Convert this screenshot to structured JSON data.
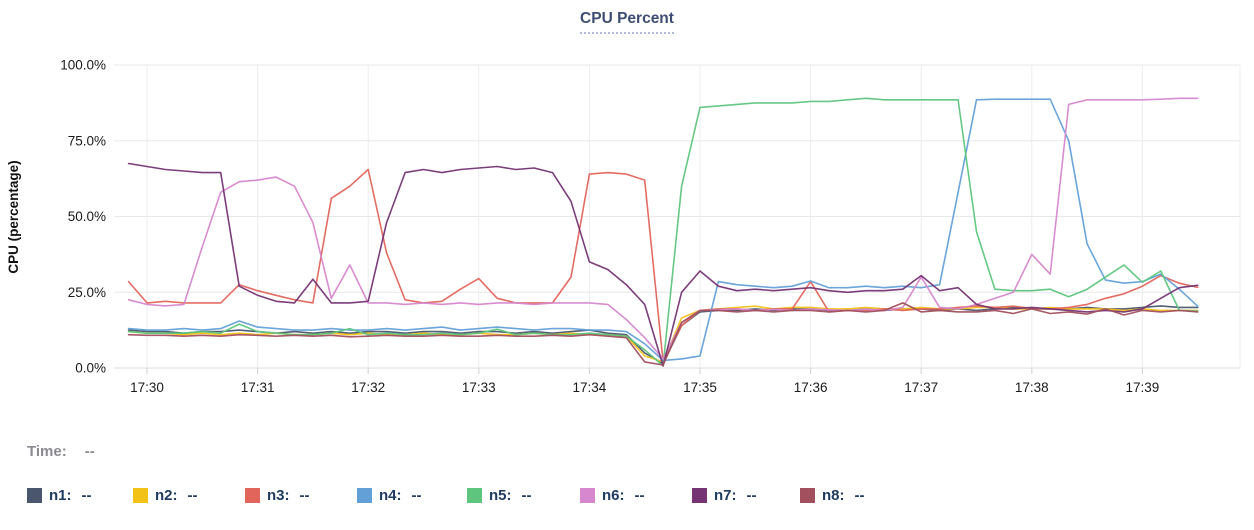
{
  "title": "CPU Percent",
  "time_row": {
    "label": "Time:",
    "value": "--"
  },
  "legend": {
    "value_placeholder": "--"
  },
  "chart_data": {
    "type": "line",
    "title": "CPU Percent",
    "xlabel": "",
    "ylabel": "CPU (percentage)",
    "ylim": [
      0,
      100
    ],
    "grid": true,
    "legend_position": "bottom",
    "y_ticks": [
      {
        "label": "0.0%",
        "value": 0
      },
      {
        "label": "25.0%",
        "value": 25
      },
      {
        "label": "50.0%",
        "value": 50
      },
      {
        "label": "75.0%",
        "value": 75
      },
      {
        "label": "100.0%",
        "value": 100
      }
    ],
    "x_ticks": [
      "17:30",
      "17:31",
      "17:32",
      "17:33",
      "17:34",
      "17:35",
      "17:36",
      "17:37",
      "17:38",
      "17:39"
    ],
    "x_start": "17:29:50",
    "x_step_seconds": 10,
    "times": [
      "17:29:50",
      "17:30:00",
      "17:30:10",
      "17:30:20",
      "17:30:30",
      "17:30:40",
      "17:30:50",
      "17:31:00",
      "17:31:10",
      "17:31:20",
      "17:31:30",
      "17:31:40",
      "17:31:50",
      "17:32:00",
      "17:32:10",
      "17:32:20",
      "17:32:30",
      "17:32:40",
      "17:32:50",
      "17:33:00",
      "17:33:10",
      "17:33:20",
      "17:33:30",
      "17:33:40",
      "17:33:50",
      "17:34:00",
      "17:34:10",
      "17:34:20",
      "17:34:30",
      "17:34:40",
      "17:34:50",
      "17:35:00",
      "17:35:10",
      "17:35:20",
      "17:35:30",
      "17:35:40",
      "17:35:50",
      "17:36:00",
      "17:36:10",
      "17:36:20",
      "17:36:30",
      "17:36:40",
      "17:36:50",
      "17:37:00",
      "17:37:10",
      "17:37:20",
      "17:37:30",
      "17:37:40",
      "17:37:50",
      "17:38:00",
      "17:38:10",
      "17:38:20",
      "17:38:30",
      "17:38:40",
      "17:38:50",
      "17:39:00",
      "17:39:10",
      "17:39:20",
      "17:39:30"
    ],
    "series": [
      {
        "name": "n1",
        "color": "#4A566E",
        "value": "--",
        "values": [
          12.5,
          12,
          12,
          11.5,
          12,
          12,
          12.5,
          12,
          11.5,
          12,
          11.5,
          12,
          11.5,
          12,
          12,
          11.5,
          12,
          12,
          11.5,
          12,
          12,
          11.5,
          12,
          11.5,
          12,
          12.5,
          11.5,
          11,
          5,
          1.5,
          14,
          18.5,
          19,
          19,
          19.5,
          19,
          19.5,
          19.5,
          19,
          19,
          19.5,
          19,
          19.5,
          19.5,
          19,
          19.5,
          19,
          19.5,
          20,
          19.5,
          19.5,
          19.5,
          20,
          19.5,
          19.5,
          20,
          20.5,
          20,
          20
        ]
      },
      {
        "name": "n2",
        "color": "#F3C218",
        "value": "--",
        "values": [
          12,
          11.5,
          11.5,
          11,
          11.5,
          11,
          11.5,
          11,
          11.5,
          11,
          11,
          11.5,
          11,
          11.5,
          11,
          11,
          11.5,
          11,
          11,
          11.5,
          11,
          11,
          11.5,
          11,
          11.5,
          11,
          11,
          10.5,
          4,
          2,
          16.5,
          19,
          19.5,
          20,
          20.4,
          19.5,
          20,
          20,
          19.5,
          19.5,
          20,
          19.5,
          19.5,
          20,
          19.5,
          19.5,
          20,
          20,
          19.5,
          19.5,
          20,
          19.5,
          19.5,
          19.5,
          19,
          19.5,
          19,
          19,
          19
        ]
      },
      {
        "name": "n3",
        "color": "#E2655C",
        "value": "--",
        "values": [
          28.5,
          21.5,
          22,
          21.5,
          21.5,
          21.5,
          27.5,
          25.5,
          24,
          22.5,
          21.5,
          56,
          60,
          65.5,
          38,
          22.5,
          21.5,
          22,
          26,
          29.5,
          23,
          21.5,
          21.5,
          21.5,
          30,
          64,
          64.5,
          64,
          62,
          2,
          14,
          19,
          19.5,
          19.5,
          19,
          19.5,
          19.5,
          28.5,
          18.5,
          19,
          19,
          19.5,
          19,
          19.5,
          19.5,
          20,
          20.5,
          20,
          20.4,
          19.7,
          19.5,
          20,
          21,
          23,
          24.5,
          27,
          30.5,
          28,
          26.6
        ]
      },
      {
        "name": "n4",
        "color": "#63A0D8",
        "value": "--",
        "values": [
          13,
          12.5,
          12.5,
          13,
          12.5,
          13,
          15.5,
          13.5,
          13,
          12.5,
          12.5,
          13,
          12.5,
          12.5,
          13,
          12.5,
          13,
          13.5,
          12.5,
          13,
          13.5,
          13,
          12.5,
          13,
          13,
          12.5,
          12.5,
          12,
          8,
          2.5,
          3,
          4,
          28.5,
          27.5,
          27,
          26.5,
          27,
          28.7,
          26.5,
          26.5,
          27,
          26.5,
          27,
          26.5,
          27.5,
          58,
          88.5,
          88.7,
          88.7,
          88.7,
          88.7,
          75,
          41,
          29,
          28,
          28.5,
          31,
          26,
          20.4
        ]
      },
      {
        "name": "n5",
        "color": "#5EC57E",
        "value": "--",
        "values": [
          12,
          11.5,
          11.5,
          11.5,
          12,
          11.5,
          14.5,
          12,
          11.5,
          11,
          11,
          11.5,
          13,
          11,
          11.5,
          11,
          11,
          11.5,
          11,
          11.5,
          12.8,
          11,
          11.5,
          11,
          11,
          11.5,
          11,
          10.5,
          6,
          0.7,
          60,
          86,
          86.5,
          87,
          87.5,
          87.5,
          87.5,
          88,
          88,
          88.5,
          89,
          88.5,
          88.5,
          88.5,
          88.5,
          88.5,
          45,
          26,
          25.5,
          25.5,
          26,
          23.5,
          26,
          30,
          34,
          28.3,
          32,
          19,
          18.8
        ]
      },
      {
        "name": "n6",
        "color": "#D687CD",
        "value": "--",
        "values": [
          22.5,
          21,
          20.5,
          21,
          40,
          58,
          61.5,
          62,
          63,
          60,
          48,
          23,
          34,
          21.5,
          21.5,
          21,
          21.5,
          21,
          21.5,
          21,
          21.5,
          21.5,
          21,
          21.5,
          21.5,
          21.5,
          21,
          16,
          10,
          3,
          15,
          19,
          19.2,
          19.5,
          19,
          19.3,
          19,
          19.5,
          19.2,
          19,
          19.4,
          19,
          20,
          30,
          20,
          19.5,
          21,
          23,
          25,
          37.5,
          31,
          87,
          88.5,
          88.5,
          88.5,
          88.5,
          88.7,
          89,
          89
        ]
      },
      {
        "name": "n7",
        "color": "#753473",
        "value": "--",
        "values": [
          67.5,
          66.5,
          65.5,
          65,
          64.5,
          64.5,
          27,
          24,
          22,
          21.5,
          29.3,
          21.5,
          21.5,
          22,
          48,
          64.5,
          65.5,
          64.5,
          65.5,
          66,
          66.5,
          65.5,
          66,
          64.5,
          55,
          35,
          32.5,
          27.5,
          21,
          0.7,
          25,
          32,
          27,
          25.5,
          26,
          25.5,
          26,
          26.5,
          25.5,
          25,
          25.5,
          25.5,
          26,
          30.5,
          25.5,
          26.5,
          21,
          19.5,
          19.5,
          20,
          19.5,
          19,
          18.5,
          19,
          18.5,
          19.5,
          23,
          26.5,
          27.3
        ]
      },
      {
        "name": "n8",
        "color": "#A24F5E",
        "value": "--",
        "values": [
          11,
          10.8,
          10.8,
          10.5,
          10.8,
          10.5,
          11,
          10.8,
          10.5,
          10.8,
          10.5,
          10.8,
          10.3,
          10.5,
          10.8,
          10.5,
          10.5,
          10.8,
          10.5,
          10.5,
          10.8,
          10.5,
          10.5,
          10.8,
          10.5,
          11,
          10.5,
          10,
          2,
          1,
          15,
          19,
          19,
          18.5,
          19,
          18.5,
          19,
          19,
          18.5,
          19,
          18.5,
          19,
          21.5,
          18.5,
          19,
          18.5,
          18.5,
          19,
          18,
          19.5,
          18,
          18.5,
          17.8,
          19.5,
          17.5,
          19,
          18.5,
          19,
          18.5
        ]
      }
    ]
  }
}
